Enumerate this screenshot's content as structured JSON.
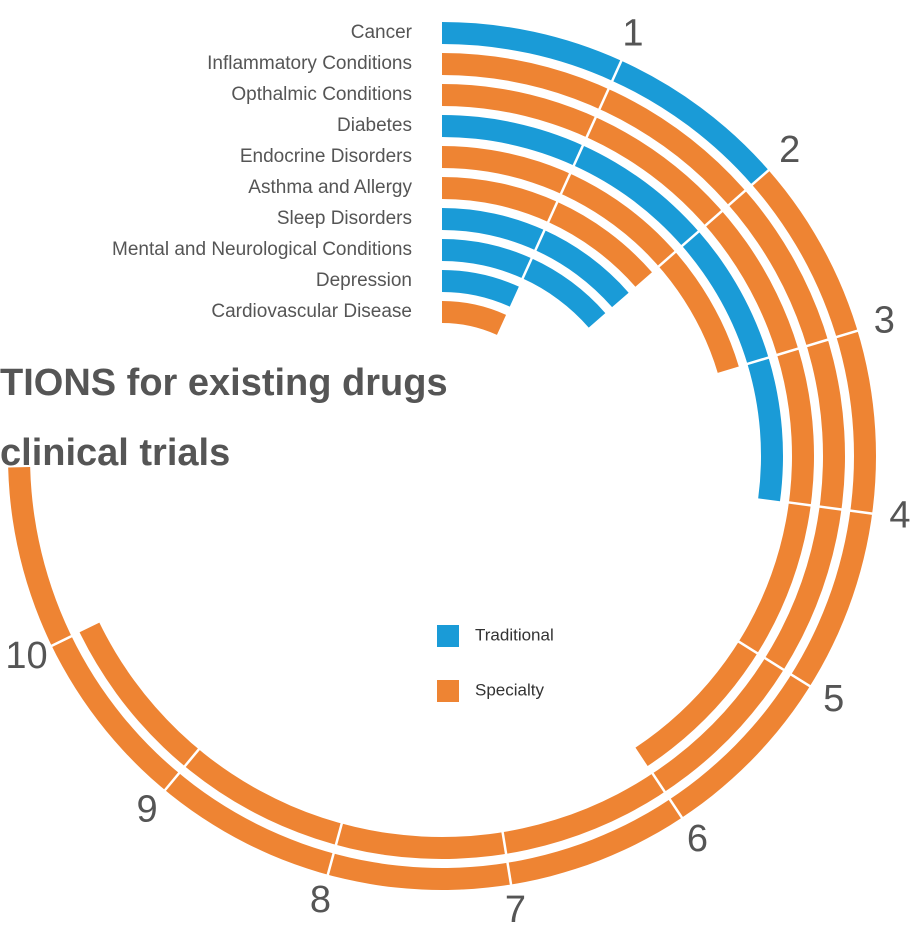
{
  "chart_data": {
    "type": "radial_bar",
    "title_lines": [
      "TIONS for existing drugs",
      "clinical trials"
    ],
    "categories": [
      "Cancer",
      "Inflammatory Conditions",
      "Opthalmic Conditions",
      "Diabetes",
      "Endocrine Disorders",
      "Asthma and Allergy",
      "Sleep Disorders",
      "Mental and Neurological Conditions",
      "Depression",
      "Cardiovascular Disease"
    ],
    "series": [
      {
        "name": "Traditional",
        "color": "#1a9bd7",
        "values": [
          2,
          0,
          0,
          4,
          0,
          0,
          2,
          2,
          1,
          0
        ]
      },
      {
        "name": "Specialty",
        "color": "#ee8433",
        "values": [
          9,
          10,
          6,
          0,
          3,
          2,
          0,
          0,
          0,
          1
        ]
      }
    ],
    "xlim": [
      0,
      14.75
    ],
    "xticks": [
      1,
      2,
      3,
      4,
      5,
      6,
      7,
      8,
      9,
      10
    ]
  }
}
